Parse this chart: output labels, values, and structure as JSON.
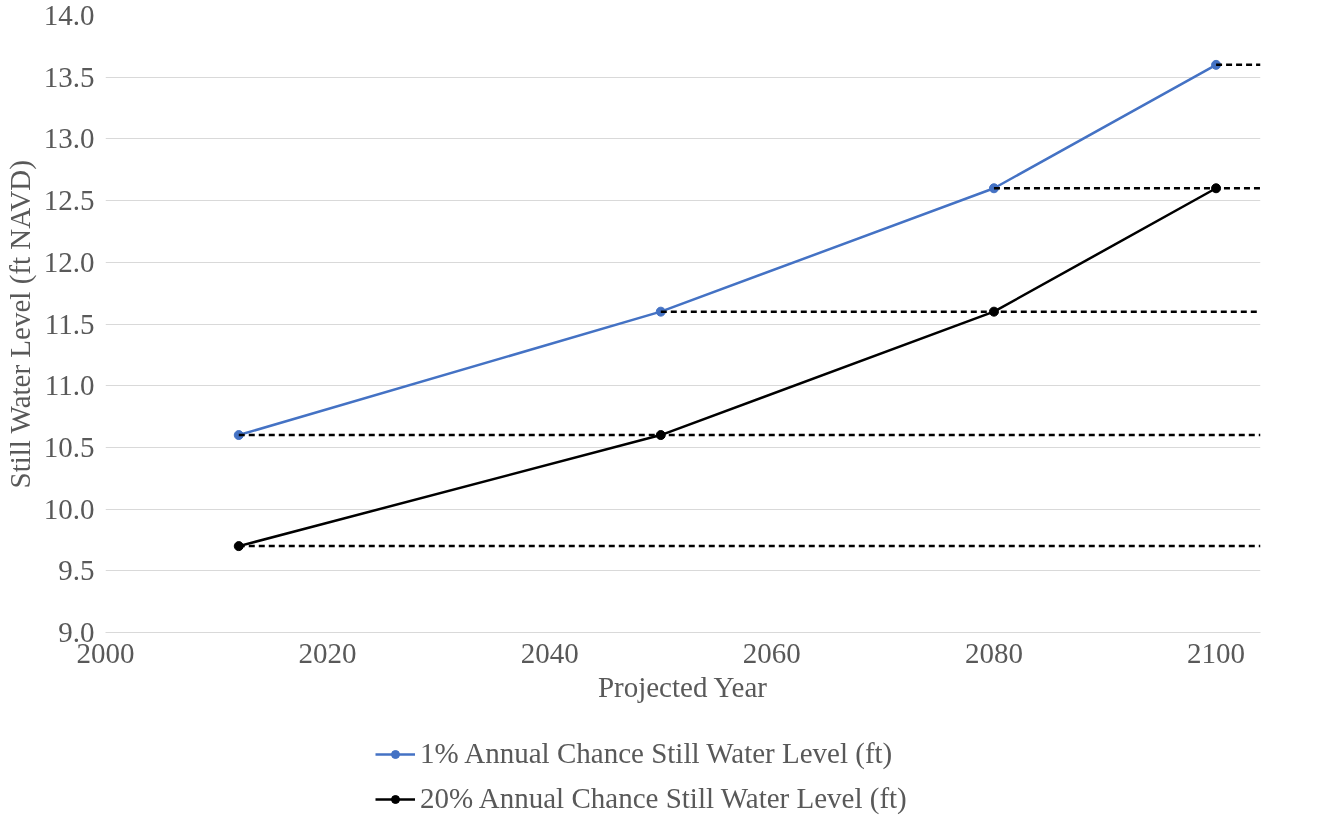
{
  "chart_data": {
    "type": "line",
    "xlabel": "Projected Year",
    "ylabel": "Still Water Level (ft NAVD)",
    "x": [
      2012,
      2050,
      2080,
      2100
    ],
    "series": [
      {
        "name": "1% Annual Chance Still Water Level (ft)",
        "color": "#4472c4",
        "values": [
          10.6,
          11.6,
          12.6,
          13.6
        ]
      },
      {
        "name": "20% Annual Chance Still Water Level (ft)",
        "color": "#000000",
        "values": [
          9.7,
          10.6,
          11.6,
          12.6
        ]
      },
      {
        "color": "#000000",
        "x": [
          2100,
          2104
        ],
        "values": [
          13.6,
          13.6
        ],
        "line_style": "dashed",
        "marker": "none"
      },
      {
        "color": "#000000",
        "x": [
          2080,
          2104
        ],
        "values": [
          12.6,
          12.6
        ],
        "line_style": "dashed",
        "marker": "none"
      },
      {
        "color": "#000000",
        "x": [
          2050,
          2104
        ],
        "values": [
          11.6,
          11.6
        ],
        "line_style": "dashed",
        "marker": "none"
      },
      {
        "color": "#000000",
        "x": [
          2012,
          2104
        ],
        "values": [
          10.6,
          10.6
        ],
        "line_style": "dashed",
        "marker": "none"
      },
      {
        "color": "#000000",
        "x": [
          2012,
          2104
        ],
        "values": [
          9.7,
          9.7
        ],
        "line_style": "dashed",
        "marker": "none"
      }
    ],
    "xlim": [
      2000,
      2104
    ],
    "xticks": [
      2000,
      2020,
      2040,
      2060,
      2080,
      2100
    ],
    "ylim": [
      9,
      14
    ],
    "yticks": [
      {
        "value": 9,
        "label": "9.0"
      },
      {
        "value": 9.5,
        "label": "9.5"
      },
      {
        "value": 10,
        "label": "10.0"
      },
      {
        "value": 10.5,
        "label": "10.5"
      },
      {
        "value": 11,
        "label": "11.0"
      },
      {
        "value": 11.5,
        "label": "11.5"
      },
      {
        "value": 12,
        "label": "12.0"
      },
      {
        "value": 12.5,
        "label": "12.5"
      },
      {
        "value": 13,
        "label": "13.0"
      },
      {
        "value": 13.5,
        "label": "13.5"
      },
      {
        "value": 14,
        "label": "14.0"
      }
    ],
    "grid": "y",
    "legend": "bottom",
    "marker": "circle",
    "line_style": "solid"
  }
}
